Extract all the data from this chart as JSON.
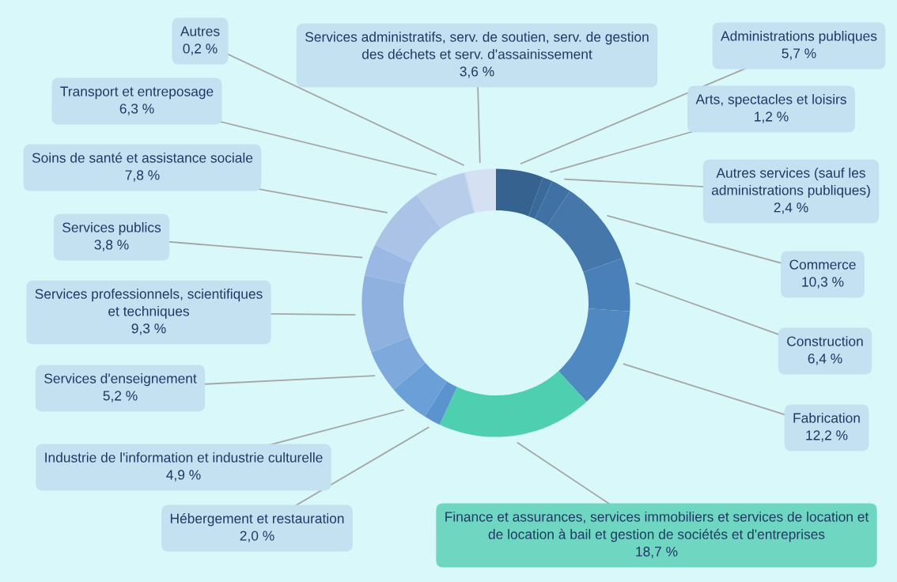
{
  "chart_data": {
    "type": "donut",
    "categories": [
      "Administrations publiques",
      "Arts, spectacles et loisirs",
      "Autres services (sauf les\nadministrations publiques)",
      "Commerce",
      "Construction",
      "Fabrication",
      "Finance et assurances, services immobiliers et services de location et\nde location à bail et gestion de sociétés et d'entreprises",
      "Hébergement et restauration",
      "Industrie de l'information et industrie culturelle",
      "Services d'enseignement",
      "Services professionnels, scientifiques\net techniques",
      "Services publics",
      "Soins de santé et assistance sociale",
      "Transport et entreposage",
      "Autres",
      "Services administratifs, serv. de soutien, serv. de gestion\ndes déchets et serv. d'assainissement"
    ],
    "values": [
      5.7,
      1.2,
      2.4,
      10.3,
      6.4,
      12.2,
      18.7,
      2.0,
      4.9,
      5.2,
      9.3,
      3.8,
      7.8,
      6.3,
      0.2,
      3.6
    ],
    "colors": [
      "#35628f",
      "#3a6a9a",
      "#3f71a5",
      "#4577ab",
      "#4a80b8",
      "#5088c2",
      "#4ecfb0",
      "#5b93cf",
      "#6a9fd8",
      "#7ea9dc",
      "#8eb1df",
      "#9ab8e3",
      "#aac3e6",
      "#b8cdea",
      "#c6d7ee",
      "#d5e1f3"
    ],
    "value_labels": [
      "5,7 %",
      "1,2 %",
      "2,4 %",
      "10,3 %",
      "6,4 %",
      "12,2 %",
      "18,7 %",
      "2,0 %",
      "4,9 %",
      "5,2 %",
      "9,3 %",
      "3,8 %",
      "7,8 %",
      "6,3 %",
      "0,2 %",
      "3,6 %"
    ]
  }
}
